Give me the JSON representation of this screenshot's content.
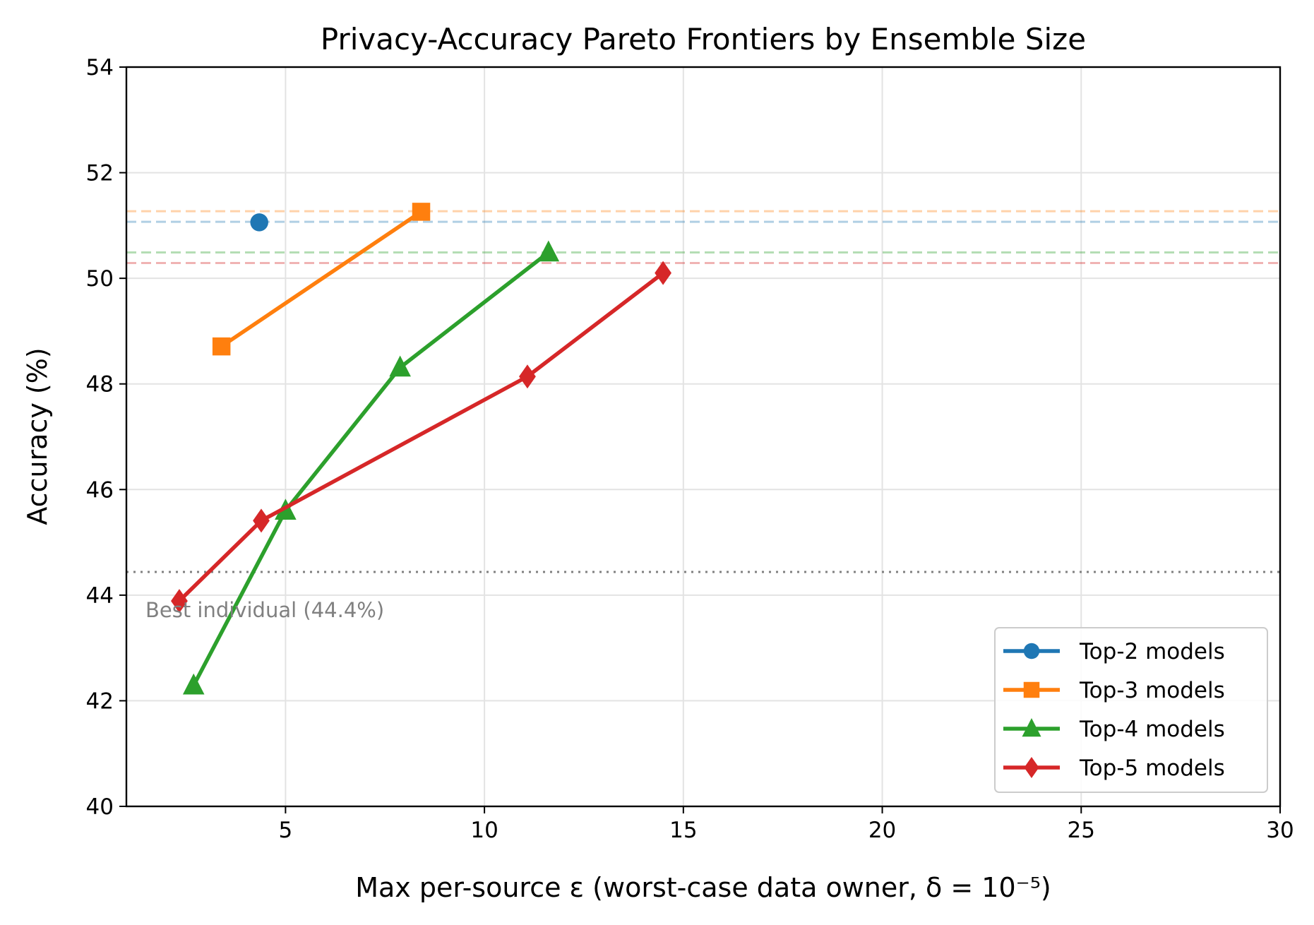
{
  "chart_data": {
    "type": "line",
    "title": "Privacy-Accuracy Pareto Frontiers by Ensemble Size",
    "xlabel": "Max per-source ε (worst-case data owner, δ = 10⁻⁵)",
    "ylabel": "Accuracy (%)",
    "xlim": [
      1,
      30
    ],
    "ylim": [
      40,
      54
    ],
    "xticks": [
      5,
      10,
      15,
      20,
      25,
      30
    ],
    "yticks": [
      40,
      42,
      44,
      46,
      48,
      50,
      52,
      54
    ],
    "grid": true,
    "legend_placement": "lower-right",
    "series": [
      {
        "name": "Top-2 models",
        "color": "#1f77b4",
        "marker": "circle",
        "x": [
          4.34
        ],
        "y": [
          51.06
        ],
        "ref_line": 51.07
      },
      {
        "name": "Top-3 models",
        "color": "#ff7f0e",
        "marker": "square",
        "x": [
          3.39,
          8.41
        ],
        "y": [
          48.71,
          51.26
        ],
        "ref_line": 51.27
      },
      {
        "name": "Top-4 models",
        "color": "#2ca02c",
        "marker": "triangle",
        "x": [
          2.69,
          5.0,
          7.88,
          11.61
        ],
        "y": [
          42.29,
          45.6,
          48.31,
          50.49
        ],
        "ref_line": 50.49
      },
      {
        "name": "Top-5 models",
        "color": "#d62728",
        "marker": "diamond",
        "x": [
          2.33,
          4.39,
          11.08,
          14.49
        ],
        "y": [
          43.89,
          45.41,
          48.14,
          50.1
        ],
        "ref_line": 50.29
      }
    ],
    "baseline": {
      "label": "Best individual (44.4%)",
      "value": 44.44,
      "color": "#808080"
    }
  }
}
